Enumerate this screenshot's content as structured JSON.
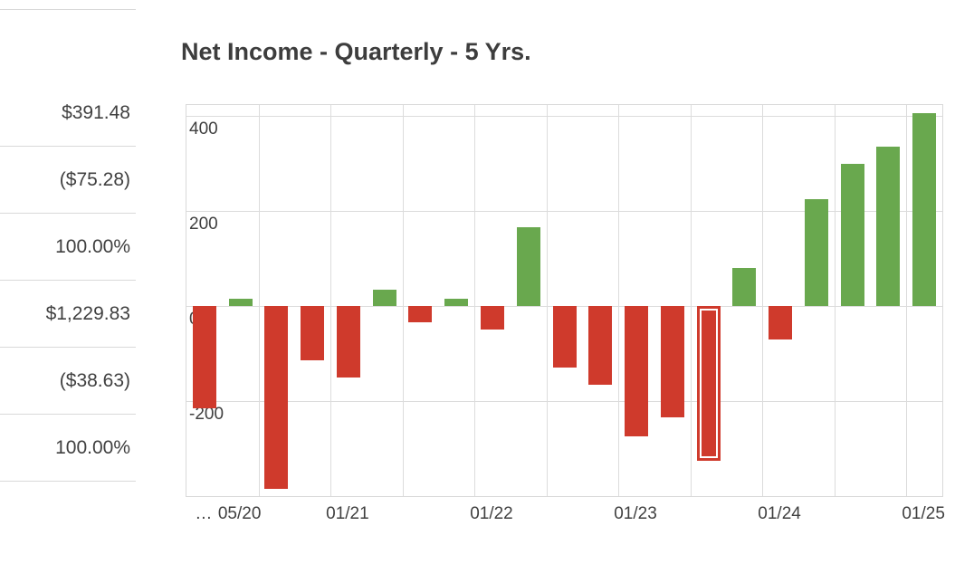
{
  "sidebar": {
    "values": [
      "$391.48",
      "($75.28)",
      "100.00%",
      "$1,229.83",
      "($38.63)",
      "100.00%"
    ]
  },
  "chart_data": {
    "type": "bar",
    "title": "Net Income - Quarterly - 5 Yrs.",
    "values": [
      -215,
      15,
      -385,
      -115,
      -150,
      35,
      -35,
      15,
      -50,
      165,
      -130,
      -165,
      -275,
      -235,
      -325,
      80,
      -70,
      225,
      300,
      335,
      405
    ],
    "selected_index": 14,
    "y_ticks": [
      400,
      200,
      0,
      -200
    ],
    "ylim": [
      -400,
      423
    ],
    "x_tick_labels": [
      {
        "index": 0,
        "label": "…"
      },
      {
        "index": 1,
        "label": "05/20"
      },
      {
        "index": 4,
        "label": "01/21"
      },
      {
        "index": 8,
        "label": "01/22"
      },
      {
        "index": 12,
        "label": "01/23"
      },
      {
        "index": 16,
        "label": "01/24"
      },
      {
        "index": 20,
        "label": "01/25"
      }
    ],
    "colors": {
      "positive": "#69a84e",
      "negative": "#cf3a2c",
      "grid": "#dcdcdc",
      "selected_outline": "#ffffff",
      "text": "#404040"
    },
    "legend": "none",
    "grid": "on"
  }
}
